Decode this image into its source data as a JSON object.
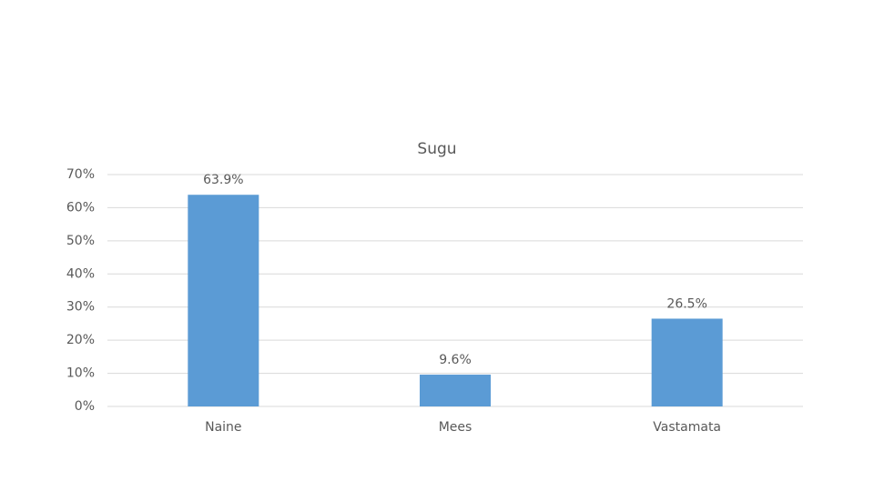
{
  "chart_data": {
    "type": "bar",
    "title": "Sugu",
    "categories": [
      "Naine",
      "Mees",
      "Vastamata"
    ],
    "values": [
      63.9,
      9.6,
      26.5
    ],
    "value_labels": [
      "63.9%",
      "9.6%",
      "26.5%"
    ],
    "color": "#5b9bd5",
    "ylim": [
      0,
      70
    ],
    "yticks": [
      {
        "value": 0,
        "label": "0%"
      },
      {
        "value": 10,
        "label": "10%"
      },
      {
        "value": 20,
        "label": "20%"
      },
      {
        "value": 30,
        "label": "30%"
      },
      {
        "value": 40,
        "label": "40%"
      },
      {
        "value": 50,
        "label": "50%"
      },
      {
        "value": 60,
        "label": "60%"
      },
      {
        "value": 70,
        "label": "70%"
      }
    ],
    "grid": true
  }
}
